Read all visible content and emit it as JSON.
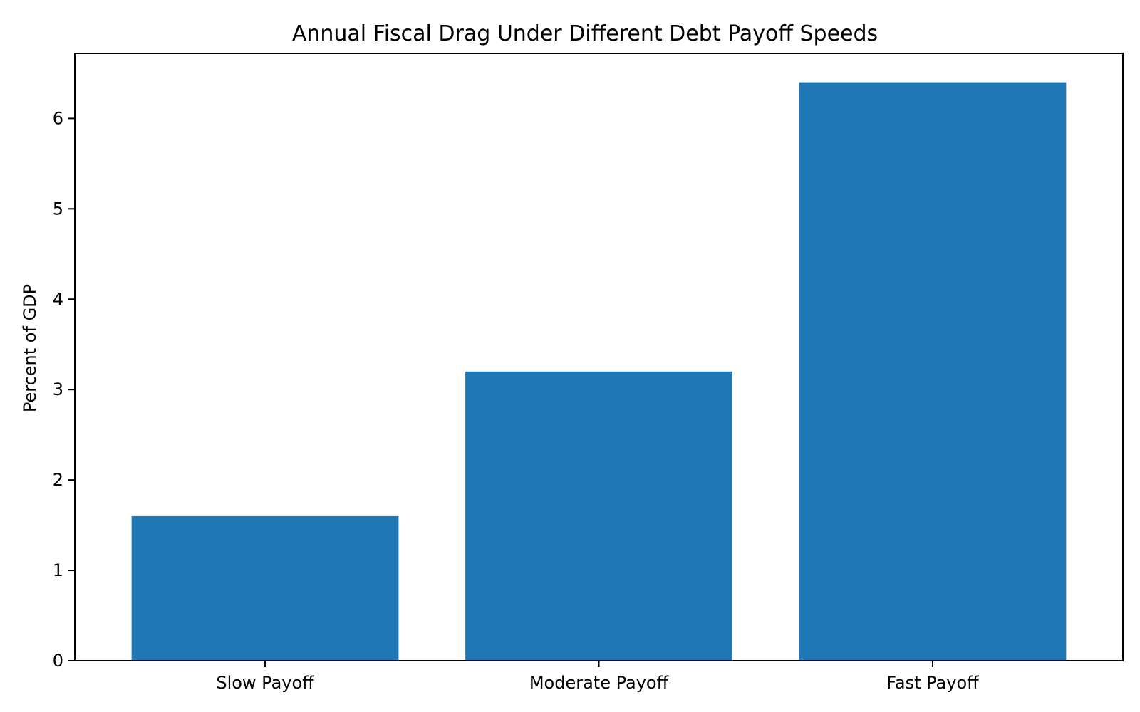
{
  "chart_data": {
    "type": "bar",
    "title": "Annual Fiscal Drag Under Different Debt Payoff Speeds",
    "xlabel": "",
    "ylabel": "Percent of GDP",
    "categories": [
      "Slow Payoff",
      "Moderate Payoff",
      "Fast Payoff"
    ],
    "values": [
      1.6,
      3.2,
      6.4
    ],
    "ylim": [
      0,
      6.72
    ],
    "yticks": [
      0,
      1,
      2,
      3,
      4,
      5,
      6
    ],
    "grid": false,
    "legend": "none",
    "bar_color": "#1f77b4"
  }
}
